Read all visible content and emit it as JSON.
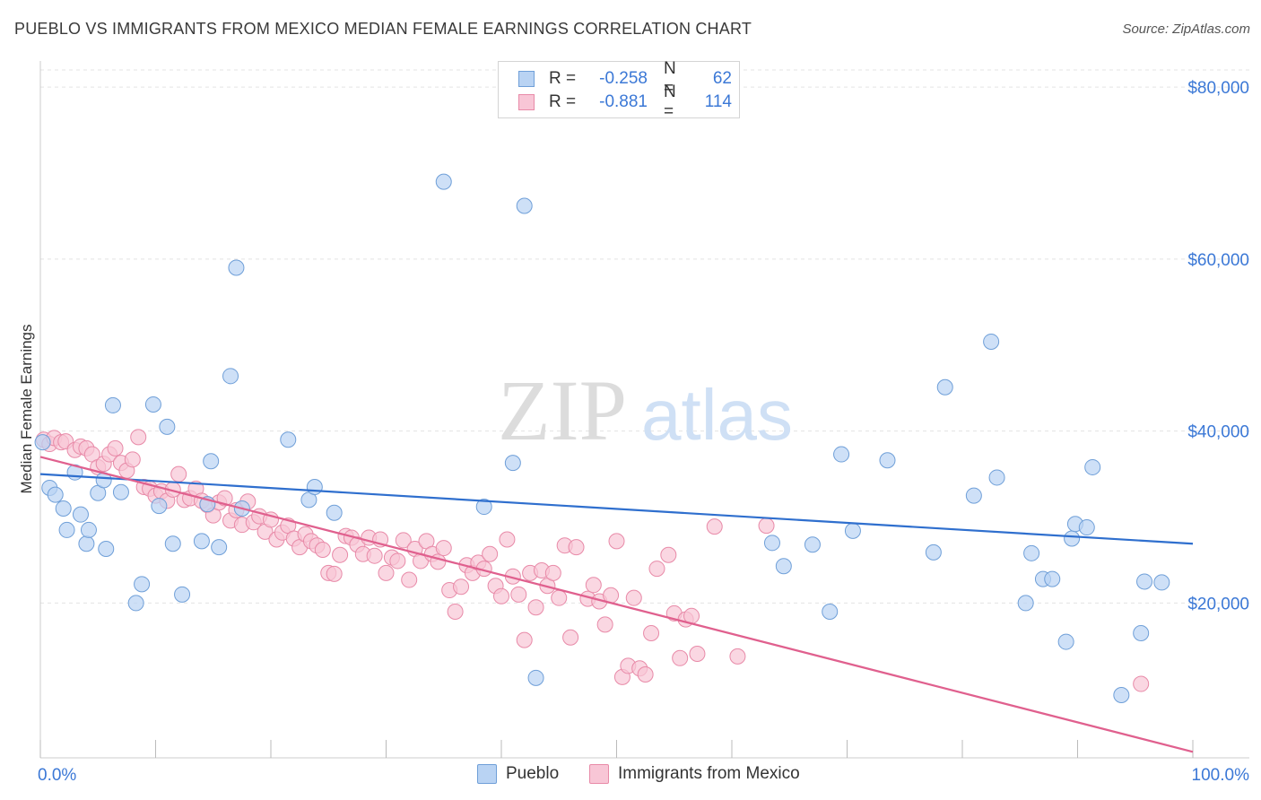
{
  "header": {
    "title": "PUEBLO VS IMMIGRANTS FROM MEXICO MEDIAN FEMALE EARNINGS CORRELATION CHART",
    "source": "Source: ZipAtlas.com"
  },
  "watermark": {
    "zip": "ZIP",
    "atlas": "atlas"
  },
  "stats": [
    {
      "r_label": "R = ",
      "r_value": "-0.258",
      "n_label": "N = ",
      "n_value": "62"
    },
    {
      "r_label": "R = ",
      "r_value": "-0.881",
      "n_label": "N = ",
      "n_value": "114"
    }
  ],
  "chart_data": {
    "type": "scatter",
    "title": "PUEBLO VS IMMIGRANTS FROM MEXICO MEDIAN FEMALE EARNINGS CORRELATION CHART",
    "xlabel": "",
    "ylabel": "Median Female Earnings",
    "xlim": [
      0,
      100
    ],
    "ylim": [
      2000,
      82000
    ],
    "x_tick_labels": [
      "0.0%",
      "100.0%"
    ],
    "y_ticks": [
      20000,
      40000,
      60000,
      80000
    ],
    "y_tick_labels": [
      "$20,000",
      "$40,000",
      "$60,000",
      "$80,000"
    ],
    "grid": true,
    "legend_position": "bottom-center",
    "colors": {
      "pueblo_fill": "#b9d3f3",
      "pueblo_stroke": "#6f9fd8",
      "pueblo_line": "#2f6fce",
      "mexico_fill": "#f8c6d6",
      "mexico_stroke": "#e88aa8",
      "mexico_line": "#e0608e",
      "axis_text": "#3b78d6",
      "grid": "#e3e3e3"
    },
    "series": [
      {
        "name": "Pueblo",
        "trend": {
          "x": [
            0,
            100
          ],
          "y": [
            35000,
            26900
          ]
        },
        "points": [
          [
            0.8,
            33400
          ],
          [
            1.3,
            32600
          ],
          [
            2.0,
            31000
          ],
          [
            2.3,
            28500
          ],
          [
            3.0,
            35200
          ],
          [
            3.5,
            30300
          ],
          [
            4.0,
            26900
          ],
          [
            4.2,
            28500
          ],
          [
            5.0,
            32800
          ],
          [
            5.5,
            34300
          ],
          [
            5.7,
            26300
          ],
          [
            6.3,
            43000
          ],
          [
            7.0,
            32900
          ],
          [
            8.3,
            20000
          ],
          [
            8.8,
            22200
          ],
          [
            9.8,
            43100
          ],
          [
            10.3,
            31300
          ],
          [
            11.0,
            40500
          ],
          [
            11.5,
            26900
          ],
          [
            12.3,
            21000
          ],
          [
            14.0,
            27200
          ],
          [
            14.5,
            31500
          ],
          [
            14.8,
            36500
          ],
          [
            15.5,
            26500
          ],
          [
            16.5,
            46400
          ],
          [
            17.0,
            59000
          ],
          [
            17.5,
            31000
          ],
          [
            21.5,
            39000
          ],
          [
            23.3,
            32000
          ],
          [
            23.8,
            33500
          ],
          [
            25.5,
            30500
          ],
          [
            35.0,
            69000
          ],
          [
            38.5,
            31200
          ],
          [
            41.0,
            36300
          ],
          [
            42.0,
            66200
          ],
          [
            43.0,
            11300
          ],
          [
            63.5,
            27000
          ],
          [
            64.5,
            24300
          ],
          [
            67.0,
            26800
          ],
          [
            68.5,
            19000
          ],
          [
            69.5,
            37300
          ],
          [
            70.5,
            28400
          ],
          [
            73.5,
            36600
          ],
          [
            77.5,
            25900
          ],
          [
            78.5,
            45100
          ],
          [
            81.0,
            32500
          ],
          [
            82.5,
            50400
          ],
          [
            83.0,
            34600
          ],
          [
            85.5,
            20000
          ],
          [
            86.0,
            25800
          ],
          [
            87.0,
            22800
          ],
          [
            87.8,
            22800
          ],
          [
            89.0,
            15500
          ],
          [
            89.5,
            27500
          ],
          [
            89.8,
            29200
          ],
          [
            90.8,
            28800
          ],
          [
            91.3,
            35800
          ],
          [
            93.8,
            9300
          ],
          [
            95.5,
            16500
          ],
          [
            95.8,
            22500
          ],
          [
            97.3,
            22400
          ],
          [
            0.2,
            38700
          ]
        ]
      },
      {
        "name": "Immigrants from Mexico",
        "trend": {
          "x": [
            0,
            100
          ],
          "y": [
            37000,
            2700
          ]
        },
        "points": [
          [
            0.3,
            39000
          ],
          [
            0.8,
            38500
          ],
          [
            1.2,
            39200
          ],
          [
            1.8,
            38700
          ],
          [
            2.2,
            38800
          ],
          [
            3.0,
            37800
          ],
          [
            3.5,
            38200
          ],
          [
            4.0,
            38000
          ],
          [
            4.5,
            37300
          ],
          [
            5.0,
            35800
          ],
          [
            5.5,
            36200
          ],
          [
            6.0,
            37300
          ],
          [
            6.5,
            38000
          ],
          [
            7.0,
            36300
          ],
          [
            7.5,
            35400
          ],
          [
            8.0,
            36700
          ],
          [
            8.5,
            39300
          ],
          [
            9.0,
            33500
          ],
          [
            9.5,
            33300
          ],
          [
            10.0,
            32500
          ],
          [
            10.5,
            33000
          ],
          [
            11.0,
            31900
          ],
          [
            11.5,
            33200
          ],
          [
            12.0,
            35000
          ],
          [
            12.5,
            32000
          ],
          [
            13.0,
            32200
          ],
          [
            13.5,
            33300
          ],
          [
            14.0,
            31900
          ],
          [
            14.5,
            31400
          ],
          [
            15.0,
            30200
          ],
          [
            15.5,
            31700
          ],
          [
            16.0,
            32200
          ],
          [
            16.5,
            29600
          ],
          [
            17.0,
            30800
          ],
          [
            17.5,
            29100
          ],
          [
            18.0,
            31800
          ],
          [
            18.5,
            29400
          ],
          [
            19.0,
            30100
          ],
          [
            19.5,
            28300
          ],
          [
            20.0,
            29700
          ],
          [
            20.5,
            27400
          ],
          [
            21.0,
            28200
          ],
          [
            21.5,
            29000
          ],
          [
            22.0,
            27500
          ],
          [
            22.5,
            26500
          ],
          [
            23.0,
            28000
          ],
          [
            23.5,
            27200
          ],
          [
            24.0,
            26700
          ],
          [
            24.5,
            26200
          ],
          [
            25.0,
            23500
          ],
          [
            25.5,
            23400
          ],
          [
            26.0,
            25600
          ],
          [
            26.5,
            27800
          ],
          [
            27.0,
            27600
          ],
          [
            27.5,
            26800
          ],
          [
            28.0,
            25700
          ],
          [
            28.5,
            27600
          ],
          [
            29.0,
            25500
          ],
          [
            29.5,
            27400
          ],
          [
            30.0,
            23500
          ],
          [
            30.5,
            25300
          ],
          [
            31.0,
            24900
          ],
          [
            31.5,
            27300
          ],
          [
            32.0,
            22700
          ],
          [
            32.5,
            26300
          ],
          [
            33.0,
            24900
          ],
          [
            33.5,
            27200
          ],
          [
            34.0,
            25700
          ],
          [
            34.5,
            24800
          ],
          [
            35.0,
            26400
          ],
          [
            35.5,
            21500
          ],
          [
            36.0,
            19000
          ],
          [
            36.5,
            21900
          ],
          [
            37.0,
            24400
          ],
          [
            37.5,
            23500
          ],
          [
            38.0,
            24700
          ],
          [
            38.5,
            24000
          ],
          [
            39.0,
            25700
          ],
          [
            39.5,
            22000
          ],
          [
            40.0,
            20800
          ],
          [
            40.5,
            27400
          ],
          [
            41.0,
            23100
          ],
          [
            41.5,
            21000
          ],
          [
            42.0,
            15700
          ],
          [
            42.5,
            23500
          ],
          [
            43.0,
            19500
          ],
          [
            43.5,
            23800
          ],
          [
            44.0,
            22000
          ],
          [
            44.5,
            23500
          ],
          [
            45.0,
            20600
          ],
          [
            45.5,
            26700
          ],
          [
            46.0,
            16000
          ],
          [
            46.5,
            26500
          ],
          [
            47.5,
            20500
          ],
          [
            48.0,
            22100
          ],
          [
            48.5,
            20200
          ],
          [
            49.0,
            17500
          ],
          [
            49.5,
            20900
          ],
          [
            50.0,
            27200
          ],
          [
            50.5,
            11400
          ],
          [
            51.0,
            12700
          ],
          [
            51.5,
            20600
          ],
          [
            52.0,
            12400
          ],
          [
            52.5,
            11700
          ],
          [
            53.0,
            16500
          ],
          [
            53.5,
            24000
          ],
          [
            54.5,
            25600
          ],
          [
            55.0,
            18800
          ],
          [
            55.5,
            13600
          ],
          [
            56.0,
            18100
          ],
          [
            56.5,
            18500
          ],
          [
            57.0,
            14100
          ],
          [
            58.5,
            28900
          ],
          [
            60.5,
            13800
          ],
          [
            63.0,
            29000
          ],
          [
            95.5,
            10600
          ]
        ]
      }
    ]
  },
  "legend": [
    {
      "label": "Pueblo"
    },
    {
      "label": "Immigrants from Mexico"
    }
  ]
}
